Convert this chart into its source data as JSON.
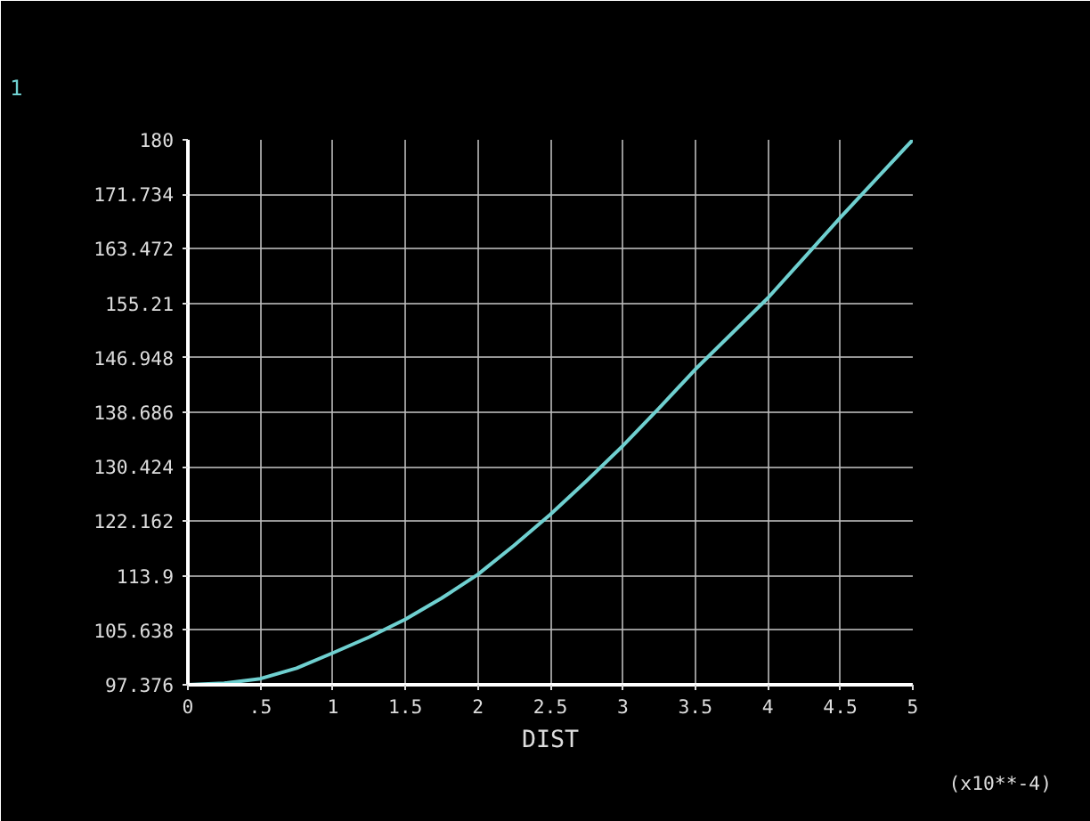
{
  "chart_data": {
    "type": "line",
    "xlabel": "DIST",
    "annotations": [
      "1",
      "(x10**-4)"
    ],
    "x": [
      0,
      0.25,
      0.5,
      0.75,
      1,
      1.25,
      1.5,
      1.75,
      2,
      2.25,
      2.5,
      2.75,
      3,
      3.25,
      3.5,
      3.75,
      4,
      4.25,
      4.5,
      4.75,
      5
    ],
    "series": [
      {
        "color": "#6fd0d0",
        "values": [
          97.376,
          97.6,
          98.3,
          99.9,
          102.2,
          104.6,
          107.3,
          110.5,
          114.1,
          118.5,
          123.2,
          128.3,
          133.6,
          139.3,
          145.2,
          150.6,
          156.0,
          162.1,
          168.2,
          174.1,
          180
        ]
      }
    ],
    "xlim": [
      0,
      5
    ],
    "ylim": [
      97.376,
      180
    ],
    "xticks": [
      0,
      {
        "value": 0.5,
        "label": ".5"
      },
      1,
      1.5,
      2,
      2.5,
      3,
      3.5,
      4,
      4.5,
      5
    ],
    "yticks": [
      97.376,
      105.638,
      113.9,
      122.162,
      130.424,
      138.686,
      146.948,
      155.21,
      163.472,
      171.734,
      180
    ],
    "grid": true,
    "marker": "none",
    "line_style": "solid"
  }
}
